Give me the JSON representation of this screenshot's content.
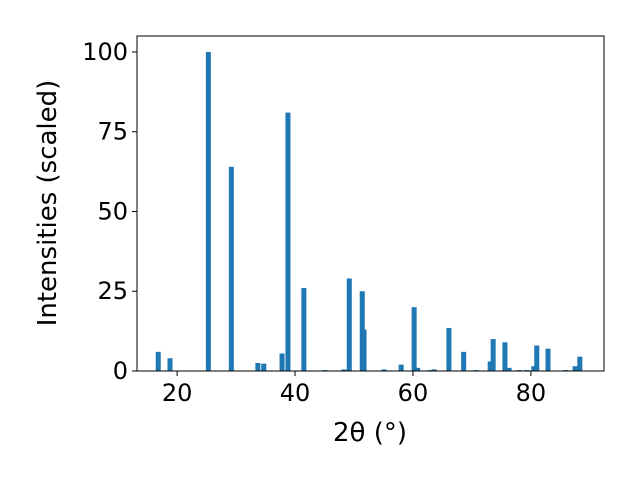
{
  "chart_data": {
    "type": "bar",
    "xlabel": "2θ (°)",
    "ylabel": "Intensities (scaled)",
    "color": "#1f77b4",
    "x": [
      16.8,
      18.8,
      25.3,
      29.2,
      33.7,
      34.7,
      37.8,
      38.8,
      41.5,
      45.1,
      48.3,
      49.2,
      51.4,
      51.7,
      55.1,
      58.0,
      60.2,
      60.8,
      62.9,
      63.6,
      66.1,
      68.6,
      70.7,
      73.1,
      73.6,
      75.6,
      76.3,
      78.0,
      79.3,
      80.5,
      81.0,
      82.9,
      85.9,
      87.5,
      88.3
    ],
    "values": [
      6,
      4,
      100,
      64,
      2.5,
      2.3,
      5.5,
      81,
      26,
      0.3,
      0.5,
      29,
      25,
      13,
      0.5,
      2,
      20,
      1,
      0.3,
      0.5,
      13.5,
      6,
      0.3,
      3,
      10,
      9,
      1,
      0.3,
      0.3,
      1.5,
      8,
      7,
      0.3,
      1.5,
      4.5
    ],
    "xlim": [
      13.2,
      92.4
    ],
    "ylim": [
      0,
      105
    ],
    "xticks": [
      20,
      40,
      60,
      80
    ],
    "yticks": [
      0,
      25,
      50,
      75,
      100
    ]
  }
}
